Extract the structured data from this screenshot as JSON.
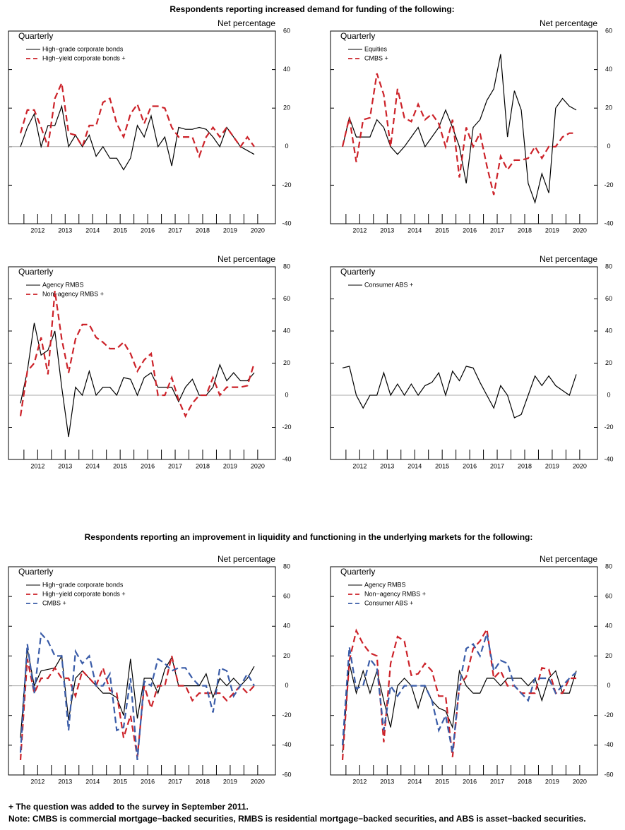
{
  "headings": [
    "Respondents reporting increased demand for funding of the following:",
    "Respondents reporting an improvement in liquidity and functioning in the underlying markets for the following:"
  ],
  "notes": [
    "+ The question was added to the survey in September 2011.",
    "Note: CMBS is commercial mortgage−backed securities, RMBS is residential mortgage−backed securities, and ABS is asset−backed securities."
  ],
  "chart_data": [
    {
      "type": "line",
      "label": "Quarterly",
      "y_label": "Net percentage",
      "zero_line": true,
      "categories": [
        null,
        null,
        "2012",
        null,
        null,
        null,
        "2013",
        null,
        null,
        null,
        "2014",
        null,
        null,
        null,
        "2015",
        null,
        null,
        null,
        "2016",
        null,
        null,
        null,
        "2017",
        null,
        null,
        null,
        "2018",
        null,
        null,
        null,
        "2019",
        null,
        null,
        null,
        "2020"
      ],
      "ylim": [
        -40,
        60
      ],
      "yticks": [
        -40,
        -20,
        0,
        20,
        40,
        60
      ],
      "series": [
        {
          "name": "High−grade corporate bonds",
          "color": "#000000",
          "style": "solid",
          "values": [
            0,
            10,
            17,
            0,
            11,
            11,
            21,
            0,
            6,
            0,
            6,
            -5,
            0,
            -6,
            -6,
            -12,
            -6,
            11,
            5,
            16,
            0,
            5,
            -10,
            10,
            9,
            9,
            10,
            9,
            5,
            0,
            10,
            5,
            0,
            -2,
            -4
          ]
        },
        {
          "name": "High−yield corporate bonds +",
          "color": "#cc2229",
          "style": "dashed",
          "values": [
            7,
            19,
            19,
            10,
            0,
            25,
            33,
            7,
            6,
            0,
            11,
            11,
            23,
            25,
            12,
            5,
            17,
            22,
            12,
            21,
            21,
            20,
            10,
            5,
            5,
            5,
            -5,
            5,
            10,
            5,
            10,
            5,
            0,
            5,
            0
          ]
        }
      ]
    },
    {
      "type": "line",
      "label": "Quarterly",
      "y_label": "Net percentage",
      "zero_line": true,
      "categories": [
        null,
        null,
        "2012",
        null,
        null,
        null,
        "2013",
        null,
        null,
        null,
        "2014",
        null,
        null,
        null,
        "2015",
        null,
        null,
        null,
        "2016",
        null,
        null,
        null,
        "2017",
        null,
        null,
        null,
        "2018",
        null,
        null,
        null,
        "2019",
        null,
        null,
        null,
        "2020"
      ],
      "ylim": [
        -40,
        60
      ],
      "yticks": [
        -40,
        -20,
        0,
        20,
        40,
        60
      ],
      "series": [
        {
          "name": "Equities",
          "color": "#000000",
          "style": "solid",
          "values": [
            0,
            15,
            5,
            5,
            5,
            14,
            10,
            0,
            -4,
            0,
            5,
            10,
            0,
            5,
            10,
            19,
            10,
            0,
            -19,
            10,
            14,
            24,
            30,
            48,
            5,
            29,
            19,
            -19,
            -29,
            -14,
            -24,
            20,
            25,
            21,
            19
          ]
        },
        {
          "name": "CMBS +",
          "color": "#cc2229",
          "style": "dashed",
          "values": [
            0,
            15,
            -8,
            14,
            15,
            38,
            27,
            0,
            30,
            15,
            13,
            22,
            14,
            17,
            12,
            0,
            14,
            -16,
            10,
            0,
            7,
            -10,
            -25,
            -5,
            -12,
            -7,
            -7,
            -6,
            0,
            -6,
            0,
            0,
            5,
            7,
            7
          ]
        }
      ]
    },
    {
      "type": "line",
      "label": "Quarterly",
      "y_label": "Net percentage",
      "zero_line": true,
      "categories": [
        null,
        null,
        "2012",
        null,
        null,
        null,
        "2013",
        null,
        null,
        null,
        "2014",
        null,
        null,
        null,
        "2015",
        null,
        null,
        null,
        "2016",
        null,
        null,
        null,
        "2017",
        null,
        null,
        null,
        "2018",
        null,
        null,
        null,
        "2019",
        null,
        null,
        null,
        "2020"
      ],
      "ylim": [
        -40,
        80
      ],
      "yticks": [
        -40,
        -20,
        0,
        20,
        40,
        60,
        80
      ],
      "series": [
        {
          "name": "Agency RMBS",
          "color": "#000000",
          "style": "solid",
          "values": [
            -5,
            15,
            45,
            25,
            28,
            40,
            5,
            -26,
            5,
            0,
            15,
            0,
            5,
            5,
            0,
            11,
            10,
            0,
            11,
            14,
            5,
            5,
            5,
            -4,
            5,
            10,
            0,
            0,
            5,
            19,
            9,
            14,
            9,
            9,
            14
          ]
        },
        {
          "name": "Non−agency RMBS +",
          "color": "#cc2229",
          "style": "dashed",
          "values": [
            -13,
            15,
            20,
            36,
            13,
            65,
            35,
            14,
            35,
            44,
            44,
            36,
            33,
            29,
            29,
            33,
            26,
            15,
            22,
            26,
            0,
            0,
            11,
            -3,
            -13,
            -5,
            0,
            0,
            11,
            0,
            5,
            5,
            5,
            6,
            20
          ]
        }
      ]
    },
    {
      "type": "line",
      "label": "Quarterly",
      "y_label": "Net percentage",
      "zero_line": true,
      "categories": [
        null,
        null,
        "2012",
        null,
        null,
        null,
        "2013",
        null,
        null,
        null,
        "2014",
        null,
        null,
        null,
        "2015",
        null,
        null,
        null,
        "2016",
        null,
        null,
        null,
        "2017",
        null,
        null,
        null,
        "2018",
        null,
        null,
        null,
        "2019",
        null,
        null,
        null,
        "2020"
      ],
      "ylim": [
        -40,
        80
      ],
      "yticks": [
        -40,
        -20,
        0,
        20,
        40,
        60,
        80
      ],
      "series": [
        {
          "name": "Consumer ABS +",
          "color": "#000000",
          "style": "solid",
          "values": [
            17,
            18,
            0,
            -8,
            0,
            0,
            14,
            0,
            7,
            0,
            7,
            0,
            6,
            8,
            14,
            0,
            15,
            9,
            18,
            17,
            8,
            0,
            -8,
            6,
            0,
            -14,
            -12,
            0,
            12,
            6,
            12,
            6,
            3,
            0,
            13
          ]
        }
      ]
    },
    {
      "type": "line",
      "label": "Quarterly",
      "y_label": "Net percentage",
      "zero_line": true,
      "categories": [
        null,
        null,
        "2012",
        null,
        null,
        null,
        "2013",
        null,
        null,
        null,
        "2014",
        null,
        null,
        null,
        "2015",
        null,
        null,
        null,
        "2016",
        null,
        null,
        null,
        "2017",
        null,
        null,
        null,
        "2018",
        null,
        null,
        null,
        "2019",
        null,
        null,
        null,
        "2020"
      ],
      "ylim": [
        -60,
        80
      ],
      "yticks": [
        -60,
        -40,
        -20,
        0,
        20,
        40,
        60,
        80
      ],
      "series": [
        {
          "name": "High−grade corporate bonds",
          "color": "#000000",
          "style": "solid",
          "values": [
            -35,
            25,
            0,
            10,
            11,
            12,
            20,
            -23,
            5,
            10,
            5,
            0,
            -5,
            -5,
            -8,
            -20,
            18,
            -22,
            5,
            5,
            -5,
            11,
            19,
            0,
            0,
            0,
            0,
            8,
            -8,
            5,
            0,
            5,
            0,
            5,
            13
          ]
        },
        {
          "name": "High−yield corporate bonds +",
          "color": "#cc2229",
          "style": "dashed",
          "values": [
            -50,
            18,
            -5,
            5,
            5,
            12,
            5,
            5,
            -7,
            10,
            5,
            0,
            12,
            -3,
            -5,
            -35,
            -20,
            -48,
            0,
            -15,
            0,
            0,
            20,
            0,
            0,
            -10,
            -5,
            -5,
            -5,
            -5,
            -10,
            -5,
            0,
            -5,
            0
          ]
        },
        {
          "name": "CMBS +",
          "color": "#3a5ca8",
          "style": "dashed",
          "values": [
            -45,
            28,
            -5,
            35,
            30,
            20,
            20,
            -30,
            23,
            15,
            20,
            0,
            0,
            8,
            -30,
            -28,
            5,
            -50,
            3,
            0,
            18,
            15,
            10,
            12,
            12,
            5,
            0,
            0,
            -18,
            12,
            10,
            -7,
            0,
            8,
            0
          ]
        }
      ]
    },
    {
      "type": "line",
      "label": "Quarterly",
      "y_label": "Net percentage",
      "zero_line": true,
      "categories": [
        null,
        null,
        "2012",
        null,
        null,
        null,
        "2013",
        null,
        null,
        null,
        "2014",
        null,
        null,
        null,
        "2015",
        null,
        null,
        null,
        "2016",
        null,
        null,
        null,
        "2017",
        null,
        null,
        null,
        "2018",
        null,
        null,
        null,
        "2019",
        null,
        null,
        null,
        "2020"
      ],
      "ylim": [
        -60,
        80
      ],
      "yticks": [
        -60,
        -40,
        -20,
        0,
        20,
        40,
        60,
        80
      ],
      "series": [
        {
          "name": "Agency RMBS",
          "color": "#000000",
          "style": "solid",
          "values": [
            -45,
            15,
            -5,
            10,
            -5,
            10,
            -10,
            -28,
            0,
            5,
            0,
            -15,
            0,
            -10,
            -15,
            -17,
            -28,
            10,
            0,
            -5,
            -5,
            5,
            5,
            0,
            5,
            5,
            5,
            0,
            5,
            -10,
            5,
            10,
            -5,
            -5,
            10
          ]
        },
        {
          "name": "Non−agency RMBS +",
          "color": "#cc2229",
          "style": "dashed",
          "values": [
            -50,
            17,
            37,
            28,
            22,
            20,
            -38,
            15,
            33,
            30,
            7,
            8,
            15,
            10,
            -7,
            -7,
            -48,
            0,
            6,
            25,
            30,
            38,
            5,
            10,
            0,
            0,
            -5,
            -5,
            -5,
            12,
            11,
            -5,
            -5,
            5,
            5
          ]
        },
        {
          "name": "Consumer ABS +",
          "color": "#3a5ca8",
          "style": "dashed",
          "values": [
            -40,
            26,
            -2,
            0,
            18,
            12,
            -30,
            0,
            -7,
            0,
            0,
            0,
            0,
            -10,
            -30,
            -20,
            -45,
            0,
            25,
            28,
            20,
            35,
            10,
            17,
            15,
            0,
            -5,
            -10,
            5,
            5,
            5,
            -5,
            0,
            5,
            9
          ]
        }
      ]
    }
  ]
}
